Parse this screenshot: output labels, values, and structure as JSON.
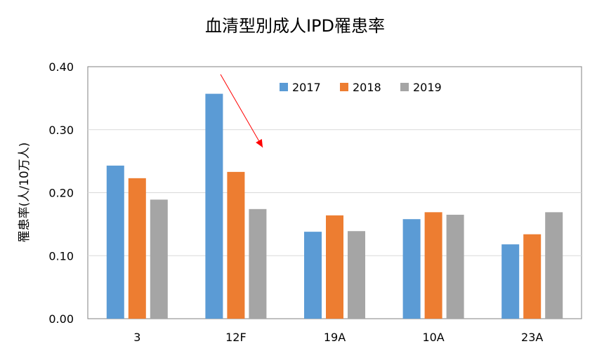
{
  "chart_data": {
    "type": "bar",
    "title": "血清型別成人IPD罹患率",
    "xlabel": "",
    "ylabel": "罹患率(人/10万人)",
    "categories": [
      "3",
      "12F",
      "19A",
      "10A",
      "23A"
    ],
    "series": [
      {
        "name": "2017",
        "color": "#5B9BD5",
        "values": [
          0.243,
          0.357,
          0.138,
          0.158,
          0.118
        ]
      },
      {
        "name": "2018",
        "color": "#ED7D31",
        "values": [
          0.223,
          0.233,
          0.164,
          0.169,
          0.134
        ]
      },
      {
        "name": "2019",
        "color": "#A5A5A5",
        "values": [
          0.189,
          0.174,
          0.139,
          0.165,
          0.169
        ]
      }
    ],
    "ylim": [
      0,
      0.4
    ],
    "yticks": [
      "0.00",
      "0.10",
      "0.20",
      "0.30",
      "0.40"
    ],
    "grid": true,
    "legend_position": "top",
    "annotation": {
      "type": "arrow",
      "color": "#FF0000",
      "target_category": "12F"
    }
  }
}
